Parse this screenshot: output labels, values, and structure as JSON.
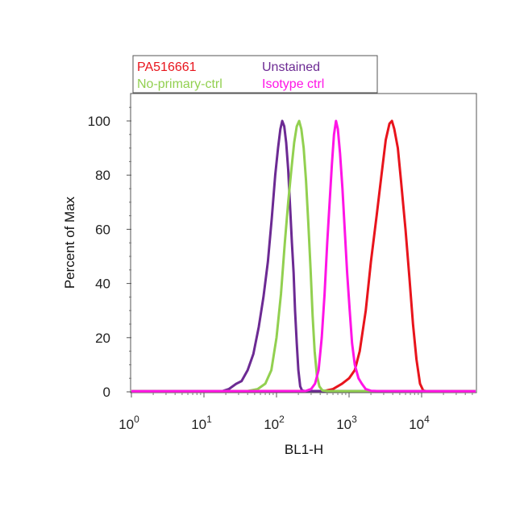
{
  "chart_data": {
    "type": "line",
    "title": "",
    "xlabel": "BL1-H",
    "ylabel": "Percent of Max",
    "x_scale": "log",
    "xlim": [
      1,
      60000
    ],
    "ylim": [
      0,
      110
    ],
    "x_ticks": [
      {
        "value": 1,
        "base": "10",
        "exp": "0"
      },
      {
        "value": 10,
        "base": "10",
        "exp": "1"
      },
      {
        "value": 100,
        "base": "10",
        "exp": "2"
      },
      {
        "value": 1000,
        "base": "10",
        "exp": "3"
      },
      {
        "value": 10000,
        "base": "10",
        "exp": "4"
      }
    ],
    "y_ticks": [
      0,
      20,
      40,
      60,
      80,
      100
    ],
    "grid": false,
    "legend_position": "top-left",
    "legend_columns": 2,
    "series": [
      {
        "name": "PA516661",
        "color": "#e8141c",
        "points": [
          [
            1,
            0.2
          ],
          [
            450,
            0.3
          ],
          [
            600,
            1
          ],
          [
            800,
            3
          ],
          [
            1000,
            5
          ],
          [
            1200,
            8
          ],
          [
            1400,
            15
          ],
          [
            1700,
            30
          ],
          [
            2000,
            48
          ],
          [
            2400,
            65
          ],
          [
            2800,
            80
          ],
          [
            3200,
            93
          ],
          [
            3600,
            99
          ],
          [
            3900,
            100
          ],
          [
            4200,
            97
          ],
          [
            4700,
            90
          ],
          [
            5200,
            78
          ],
          [
            6000,
            60
          ],
          [
            6800,
            42
          ],
          [
            7600,
            25
          ],
          [
            8500,
            12
          ],
          [
            9500,
            3
          ],
          [
            10500,
            0.5
          ],
          [
            12000,
            0.2
          ],
          [
            60000,
            0.2
          ]
        ]
      },
      {
        "name": "Unstained",
        "color": "#6c2a93",
        "points": [
          [
            1,
            0.2
          ],
          [
            18,
            0.3
          ],
          [
            22,
            1
          ],
          [
            28,
            3
          ],
          [
            33,
            4
          ],
          [
            40,
            8
          ],
          [
            48,
            14
          ],
          [
            57,
            24
          ],
          [
            66,
            35
          ],
          [
            76,
            48
          ],
          [
            86,
            64
          ],
          [
            96,
            80
          ],
          [
            105,
            90
          ],
          [
            113,
            97
          ],
          [
            120,
            100
          ],
          [
            128,
            98
          ],
          [
            136,
            92
          ],
          [
            145,
            82
          ],
          [
            154,
            68
          ],
          [
            163,
            55
          ],
          [
            172,
            44
          ],
          [
            180,
            30
          ],
          [
            190,
            18
          ],
          [
            200,
            8
          ],
          [
            212,
            2
          ],
          [
            225,
            0.5
          ],
          [
            245,
            0.3
          ],
          [
            60000,
            0.2
          ]
        ]
      },
      {
        "name": "No-primary-ctrl",
        "color": "#92d050",
        "points": [
          [
            1,
            0.2
          ],
          [
            40,
            0.3
          ],
          [
            55,
            1
          ],
          [
            70,
            3
          ],
          [
            85,
            8
          ],
          [
            100,
            20
          ],
          [
            115,
            36
          ],
          [
            130,
            55
          ],
          [
            145,
            70
          ],
          [
            160,
            82
          ],
          [
            175,
            92
          ],
          [
            190,
            98
          ],
          [
            205,
            100
          ],
          [
            220,
            97
          ],
          [
            237,
            90
          ],
          [
            255,
            78
          ],
          [
            275,
            62
          ],
          [
            295,
            45
          ],
          [
            315,
            28
          ],
          [
            335,
            15
          ],
          [
            360,
            6
          ],
          [
            390,
            2
          ],
          [
            430,
            0.5
          ],
          [
            500,
            0.3
          ],
          [
            60000,
            0.2
          ]
        ]
      },
      {
        "name": "Isotype ctrl",
        "color": "#ff14e6",
        "points": [
          [
            1,
            0.2
          ],
          [
            250,
            0.3
          ],
          [
            300,
            1
          ],
          [
            340,
            3
          ],
          [
            380,
            8
          ],
          [
            420,
            20
          ],
          [
            460,
            36
          ],
          [
            500,
            55
          ],
          [
            540,
            70
          ],
          [
            580,
            84
          ],
          [
            620,
            95
          ],
          [
            660,
            100
          ],
          [
            700,
            97
          ],
          [
            750,
            88
          ],
          [
            810,
            75
          ],
          [
            870,
            60
          ],
          [
            940,
            44
          ],
          [
            1020,
            30
          ],
          [
            1100,
            18
          ],
          [
            1200,
            10
          ],
          [
            1350,
            5
          ],
          [
            1500,
            3
          ],
          [
            1700,
            1
          ],
          [
            2000,
            0.4
          ],
          [
            2400,
            0.3
          ],
          [
            60000,
            0.2
          ]
        ]
      }
    ]
  }
}
